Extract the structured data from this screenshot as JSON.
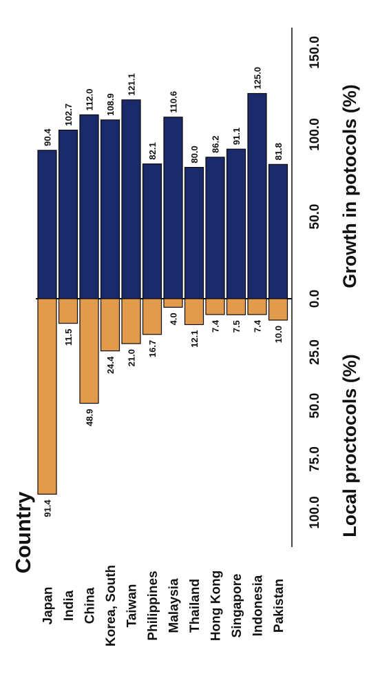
{
  "chart_data": {
    "type": "bar",
    "title": "",
    "category_label": "Country",
    "categories": [
      "Japan",
      "India",
      "China",
      "Korea, South",
      "Taiwan",
      "Philippines",
      "Malaysia",
      "Thailand",
      "Hong Kong",
      "Singapore",
      "Indonesia",
      "Pakistan"
    ],
    "series": [
      {
        "name": "",
        "values": [
          90.4,
          102.7,
          112.0,
          108.9,
          121.1,
          82.1,
          110.6,
          80.0,
          86.2,
          91.1,
          125.0,
          81.8
        ],
        "color": "#1b2a6b"
      },
      {
        "name": "",
        "values": [
          91.4,
          11.5,
          48.9,
          24.4,
          21.0,
          16.7,
          4.0,
          12.1,
          7.4,
          7.5,
          7.4,
          10.0
        ],
        "color": "#e29a4c"
      }
    ],
    "value_labels": {
      "growth": [
        "90.4",
        "102.7",
        "112.0",
        "108.9",
        "121.1",
        "82.1",
        "110.6",
        "80.0",
        "86.2",
        "91.1",
        "125.0",
        "81.8"
      ],
      "local": [
        "91.4",
        "11.5",
        "48.9",
        "24.4",
        "21.0",
        "16.7",
        "4.0",
        "12.1",
        "7.4",
        "7.5",
        "7.4",
        "10.0"
      ]
    },
    "growth_axis": {
      "label": "Growth in potocols (%)",
      "range": [
        0,
        150
      ],
      "ticks": [
        0,
        50,
        100,
        150
      ],
      "tick_labels": [
        "0.0",
        "50.0",
        "100.0",
        "150.0"
      ]
    },
    "local_axis": {
      "label": "Local proctocols (%)",
      "ticks": [
        0,
        25,
        50,
        75,
        100
      ],
      "tick_labels": [
        "0.0",
        "25.0",
        "50.0",
        "75.0",
        "100.0"
      ]
    },
    "grid": false,
    "legend": "none",
    "orientation": "rotated 90 degrees counter-clockwise"
  }
}
